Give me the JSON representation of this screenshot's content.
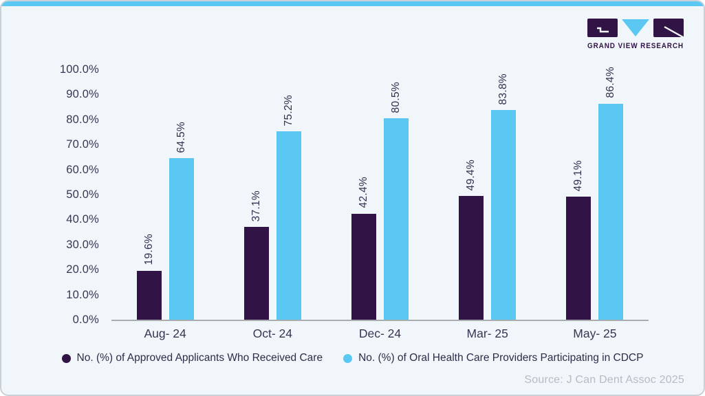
{
  "brand": {
    "logo_text": "GRAND VIEW RESEARCH"
  },
  "colors": {
    "accent_bar": "#5ac8f2",
    "card_background": "#f0f6f9",
    "card_border": "#c9d1d7",
    "series_dark_purple": "#321345",
    "series_light_blue": "#5ac8f2",
    "axis_text": "#3a3554",
    "baseline": "#aaadb0",
    "source_text": "#b6bcc2",
    "logo_purple": "#321345"
  },
  "chart_data": {
    "type": "bar",
    "title": "",
    "xlabel": "",
    "ylabel": "",
    "categories": [
      "Aug- 24",
      "Oct- 24",
      "Dec- 24",
      "Mar- 25",
      "May- 25"
    ],
    "series": [
      {
        "name": "No. (%) of Approved Applicants Who Received Care",
        "color": "#321345",
        "values": [
          19.6,
          37.1,
          42.4,
          49.4,
          49.1
        ]
      },
      {
        "name": "No. (%) of Oral Health Care Providers Participating in CDCP",
        "color": "#5ac8f2",
        "values": [
          64.5,
          75.2,
          80.5,
          83.8,
          86.4
        ]
      }
    ],
    "value_suffix": "%",
    "data_labels_rotated": true,
    "ylim": [
      0,
      100
    ],
    "y_tick_step": 10,
    "y_ticks": [
      "0.0%",
      "10.0%",
      "20.0%",
      "30.0%",
      "40.0%",
      "50.0%",
      "60.0%",
      "70.0%",
      "80.0%",
      "90.0%",
      "100.0%"
    ],
    "grid": false,
    "legend_position": "bottom"
  },
  "source": "Source: J Can Dent Assoc 2025"
}
